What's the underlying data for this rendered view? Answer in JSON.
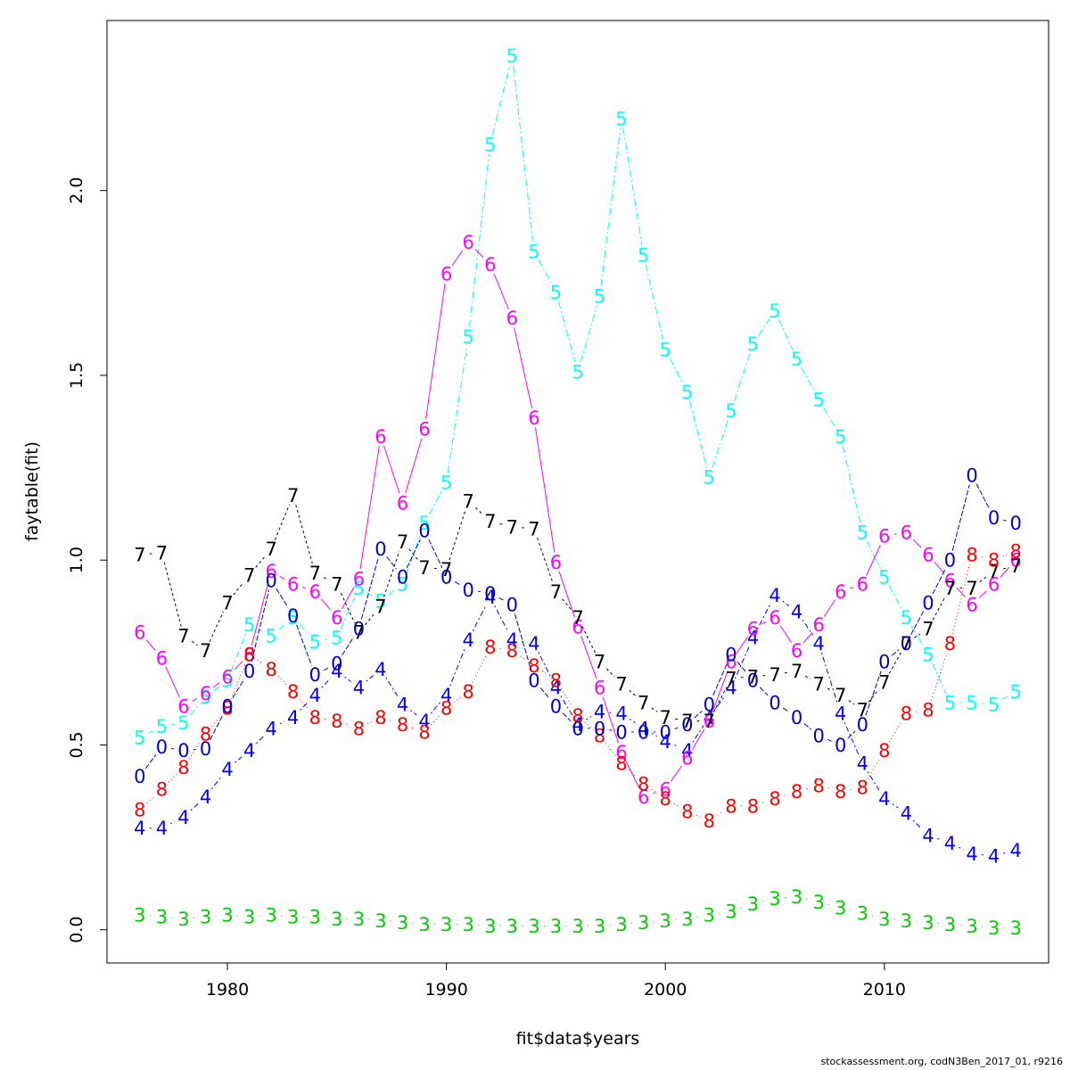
{
  "footer": "stockassessment.org, codN3Ben_2017_01, r9216",
  "chart_data": {
    "type": "line",
    "xlabel": "fit$data$years",
    "ylabel": "faytable(fit)",
    "xlim": [
      1974.5,
      2017.5
    ],
    "ylim": [
      -0.09,
      2.46
    ],
    "x_ticks": [
      1980,
      1990,
      2000,
      2010
    ],
    "y_ticks": [
      0.0,
      0.5,
      1.0,
      1.5,
      2.0
    ],
    "y_tick_labels": [
      "0.0",
      "0.5",
      "1.0",
      "1.5",
      "2.0"
    ],
    "x": [
      1976,
      1977,
      1978,
      1979,
      1980,
      1981,
      1982,
      1983,
      1984,
      1985,
      1986,
      1987,
      1988,
      1989,
      1990,
      1991,
      1992,
      1993,
      1994,
      1995,
      1996,
      1997,
      1998,
      1999,
      2000,
      2001,
      2002,
      2003,
      2004,
      2005,
      2006,
      2007,
      2008,
      2009,
      2010,
      2011,
      2012,
      2013,
      2014,
      2015,
      2016
    ],
    "series": [
      {
        "symbol": "3",
        "color": "#00cd00",
        "dash": "1,7",
        "values": [
          0.04,
          0.035,
          0.03,
          0.035,
          0.04,
          0.035,
          0.04,
          0.035,
          0.035,
          0.03,
          0.03,
          0.025,
          0.02,
          0.015,
          0.015,
          0.015,
          0.01,
          0.01,
          0.01,
          0.01,
          0.01,
          0.01,
          0.015,
          0.02,
          0.025,
          0.03,
          0.04,
          0.05,
          0.07,
          0.085,
          0.09,
          0.075,
          0.06,
          0.045,
          0.03,
          0.025,
          0.02,
          0.015,
          0.01,
          0.005,
          0.005
        ]
      },
      {
        "symbol": "4",
        "color": "#0000ff",
        "dash": "2,3,6,3",
        "values": [
          0.275,
          0.275,
          0.305,
          0.36,
          0.435,
          0.485,
          0.545,
          0.575,
          0.635,
          0.7,
          0.655,
          0.705,
          0.61,
          0.565,
          0.635,
          0.785,
          0.9,
          0.785,
          0.775,
          0.655,
          0.555,
          0.59,
          0.585,
          0.545,
          0.51,
          0.485,
          0.575,
          0.655,
          0.79,
          0.905,
          0.86,
          0.775,
          0.585,
          0.45,
          0.355,
          0.315,
          0.255,
          0.235,
          0.205,
          0.2,
          0.215
        ]
      },
      {
        "symbol": "5",
        "color": "#00ffff",
        "dash": "8,3,2,3",
        "values": [
          0.52,
          0.55,
          0.56,
          0.63,
          0.675,
          0.825,
          0.795,
          0.845,
          0.78,
          0.79,
          0.925,
          0.89,
          0.935,
          1.1,
          1.21,
          1.605,
          2.125,
          2.365,
          1.835,
          1.725,
          1.51,
          1.715,
          2.195,
          1.825,
          1.57,
          1.455,
          1.225,
          1.405,
          1.585,
          1.675,
          1.545,
          1.435,
          1.335,
          1.075,
          0.955,
          0.845,
          0.745,
          0.615,
          0.615,
          0.61,
          0.645
        ]
      },
      {
        "symbol": "6",
        "color": "#ff00ff",
        "dash": "",
        "values": [
          0.805,
          0.735,
          0.605,
          0.64,
          0.685,
          0.745,
          0.97,
          0.935,
          0.915,
          0.845,
          0.95,
          1.335,
          1.155,
          1.355,
          1.775,
          1.86,
          1.8,
          1.655,
          1.385,
          0.995,
          0.82,
          0.655,
          0.48,
          0.36,
          0.38,
          0.465,
          0.565,
          0.725,
          0.815,
          0.845,
          0.755,
          0.825,
          0.915,
          0.935,
          1.065,
          1.075,
          1.015,
          0.945,
          0.88,
          0.935,
          1.0
        ]
      },
      {
        "symbol": "7",
        "color": "#000000",
        "dash": "3,3",
        "values": [
          1.015,
          1.02,
          0.795,
          0.755,
          0.885,
          0.96,
          1.03,
          1.175,
          0.965,
          0.935,
          0.805,
          0.875,
          1.05,
          0.98,
          0.975,
          1.16,
          1.105,
          1.09,
          1.085,
          0.915,
          0.845,
          0.725,
          0.665,
          0.615,
          0.575,
          0.565,
          0.565,
          0.68,
          0.685,
          0.69,
          0.7,
          0.665,
          0.635,
          0.595,
          0.67,
          0.775,
          0.815,
          0.925,
          0.925,
          0.97,
          0.985
        ]
      },
      {
        "symbol": "8",
        "color": "#ff0000",
        "dash": "1,3",
        "values": [
          0.325,
          0.38,
          0.44,
          0.53,
          0.6,
          0.745,
          0.705,
          0.645,
          0.575,
          0.565,
          0.545,
          0.575,
          0.555,
          0.535,
          0.6,
          0.645,
          0.765,
          0.755,
          0.715,
          0.675,
          0.58,
          0.525,
          0.45,
          0.395,
          0.355,
          0.32,
          0.295,
          0.335,
          0.335,
          0.355,
          0.375,
          0.39,
          0.375,
          0.385,
          0.485,
          0.585,
          0.595,
          0.775,
          1.015,
          1.0,
          1.025
        ]
      },
      {
        "symbol": "0",
        "color": "#0000cd",
        "dash": "6,2",
        "values": [
          0.415,
          0.495,
          0.485,
          0.49,
          0.605,
          0.7,
          0.945,
          0.85,
          0.69,
          0.72,
          0.815,
          1.03,
          0.955,
          1.08,
          0.955,
          0.92,
          0.91,
          0.88,
          0.675,
          0.605,
          0.545,
          0.545,
          0.535,
          0.535,
          0.535,
          0.555,
          0.61,
          0.745,
          0.675,
          0.615,
          0.575,
          0.525,
          0.5,
          0.555,
          0.725,
          0.775,
          0.885,
          1.0,
          1.23,
          1.115,
          1.1
        ]
      }
    ]
  }
}
